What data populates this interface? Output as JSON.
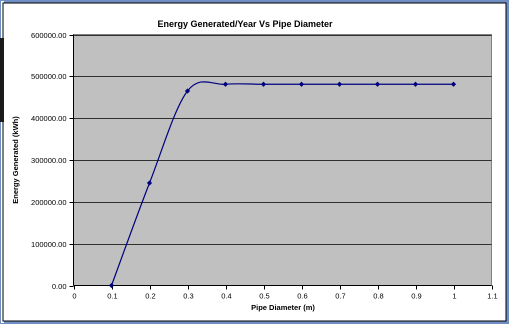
{
  "chart_data": {
    "type": "line",
    "title": "Energy Generated/Year Vs Pipe Diameter",
    "xlabel": "Pipe Diameter (m)",
    "ylabel": "Energy Generated (kWh)",
    "xlim": [
      0,
      1.1
    ],
    "ylim": [
      0,
      600000
    ],
    "x_ticks": [
      "0",
      "0.1",
      "0.2",
      "0.3",
      "0.4",
      "0.5",
      "0.6",
      "0.7",
      "0.8",
      "0.9",
      "1",
      "1.1"
    ],
    "y_ticks": [
      "0.00",
      "100000.00",
      "200000.00",
      "300000.00",
      "400000.00",
      "500000.00",
      "600000.00"
    ],
    "grid": "horizontal",
    "legend": "none",
    "series": [
      {
        "x": [
          0.1,
          0.2,
          0.3,
          0.4,
          0.5,
          0.6,
          0.7,
          0.8,
          0.9,
          1.0
        ],
        "y": [
          0,
          245000,
          465000,
          481000,
          481000,
          481000,
          481000,
          481000,
          481000,
          481000
        ]
      }
    ],
    "colors": {
      "outer_frame": "#6f8ec4",
      "chart_area": "#ffffff",
      "plot_area": "#c0c0c0",
      "line": "#000080",
      "gridline": "#000000"
    }
  }
}
